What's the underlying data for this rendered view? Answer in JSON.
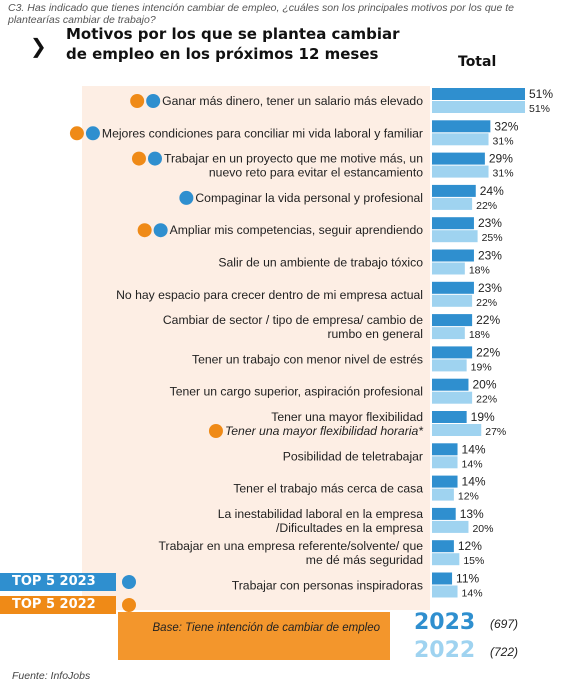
{
  "question": "C3. Has indicado que tienes intención cambiar de empleo, ¿cuáles son los principales motivos por los que te plantearías cambiar de trabajo?",
  "title": "Motivos por los que se plantea cambiar de empleo en los próximos 12 meses",
  "total_header": "Total",
  "legend": {
    "top5_2023": "TOP 5 2023",
    "top5_2022": "TOP 5 2022"
  },
  "base_text": "Base: Tiene intención de cambiar de empleo",
  "years": [
    {
      "year": "2023",
      "n": "(697)"
    },
    {
      "year": "2022",
      "n": "(722)"
    }
  ],
  "source": "Fuente: InfoJobs",
  "colors": {
    "bar_2023": "#2f8fcf",
    "bar_2022": "#9fd3f0",
    "top5_2023": "#2f8fcf",
    "top5_2022": "#ef8a17",
    "panel": "#fdeee4",
    "year_2023_text": "#2f8fcf",
    "year_2022_text": "#9fd3f0"
  },
  "chart_data": {
    "type": "bar",
    "orientation": "horizontal",
    "unit": "%",
    "xlim": [
      0,
      51
    ],
    "categories": [
      "Ganar más dinero, tener un salario más elevado",
      "Mejores condiciones para conciliar mi vida laboral y familiar",
      "Trabajar en un proyecto que me motive más, un nuevo reto para evitar el estancamiento",
      "Compaginar la vida personal y profesional",
      "Ampliar mis competencias, seguir aprendiendo",
      "Salir de un ambiente de trabajo tóxico",
      "No hay espacio para crecer dentro de mi empresa actual",
      "Cambiar de sector / tipo de empresa/ cambio de rumbo en general",
      "Tener un trabajo con menor nivel de estrés",
      "Tener un cargo superior, aspiración profesional",
      "Tener una mayor flexibilidad",
      "Posibilidad de teletrabajar",
      "Tener el trabajo más cerca de casa",
      "La inestabilidad laboral en la empresa /Dificultades en la empresa",
      "Trabajar en una empresa referente/solvente/ que me dé más seguridad",
      "Trabajar con personas inspiradoras"
    ],
    "sublabels": {
      "10": "Tener una mayor flexibilidad horaria*"
    },
    "series": [
      {
        "name": "2023",
        "values": [
          51,
          32,
          29,
          24,
          23,
          23,
          23,
          22,
          22,
          20,
          19,
          14,
          14,
          13,
          12,
          11
        ]
      },
      {
        "name": "2022",
        "values": [
          51,
          31,
          31,
          22,
          25,
          18,
          22,
          18,
          19,
          22,
          27,
          14,
          12,
          20,
          15,
          14
        ]
      }
    ],
    "top5_2023": [
      0,
      1,
      2,
      3,
      4
    ],
    "top5_2022": [
      0,
      1,
      2,
      4,
      10
    ]
  }
}
